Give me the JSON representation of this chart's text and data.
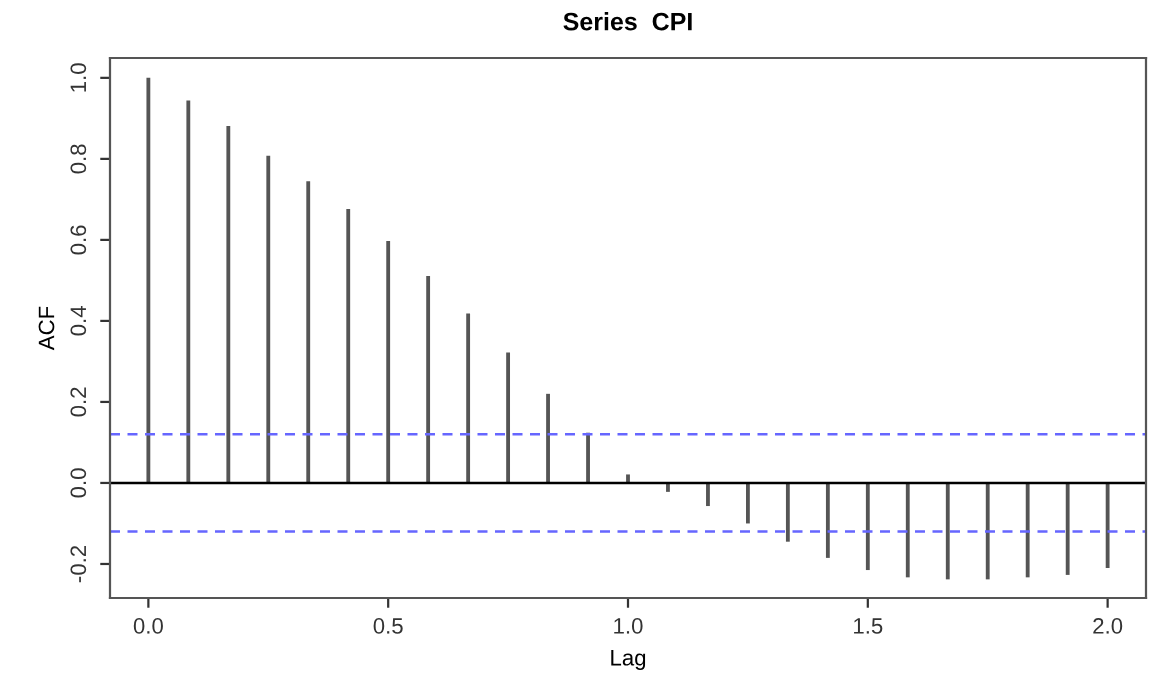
{
  "chart_data": {
    "type": "bar",
    "title": "Series  CPI",
    "xlabel": "Lag",
    "ylabel": "ACF",
    "x": [
      0,
      0.0833,
      0.1667,
      0.25,
      0.3333,
      0.4167,
      0.5,
      0.5833,
      0.6667,
      0.75,
      0.8333,
      0.9167,
      1.0,
      1.0833,
      1.1667,
      1.25,
      1.3333,
      1.4167,
      1.5,
      1.5833,
      1.6667,
      1.75,
      1.8333,
      1.9167,
      2.0
    ],
    "values": [
      1.0,
      0.944,
      0.881,
      0.808,
      0.745,
      0.676,
      0.597,
      0.511,
      0.418,
      0.322,
      0.22,
      0.124,
      0.021,
      -0.022,
      -0.057,
      -0.1,
      -0.145,
      -0.185,
      -0.215,
      -0.233,
      -0.238,
      -0.238,
      -0.233,
      -0.227,
      -0.21
    ],
    "color": "#555555",
    "xlim": [
      -0.08,
      2.08
    ],
    "ylim": [
      -0.284,
      1.049
    ],
    "xticks": [
      {
        "value": 0,
        "label": "0.0"
      },
      0.5,
      {
        "value": 1,
        "label": "1.0"
      },
      1.5,
      {
        "value": 2,
        "label": "2.0"
      }
    ],
    "yticks": [
      {
        "value": -0.2,
        "label": "-0.2"
      },
      {
        "value": 0,
        "label": "0.0"
      },
      0.2,
      0.4,
      0.6,
      0.8,
      {
        "value": 1,
        "label": "1.0"
      }
    ],
    "ref_lines": [
      {
        "axis": "y",
        "value": 0,
        "color": "#000000",
        "line_style": "solid"
      },
      {
        "axis": "y",
        "value": 0.12,
        "color": "#6666ff",
        "line_style": "dashed"
      },
      {
        "axis": "y",
        "value": -0.12,
        "color": "#6666ff",
        "line_style": "dashed"
      }
    ],
    "grid": false,
    "legend": false
  }
}
